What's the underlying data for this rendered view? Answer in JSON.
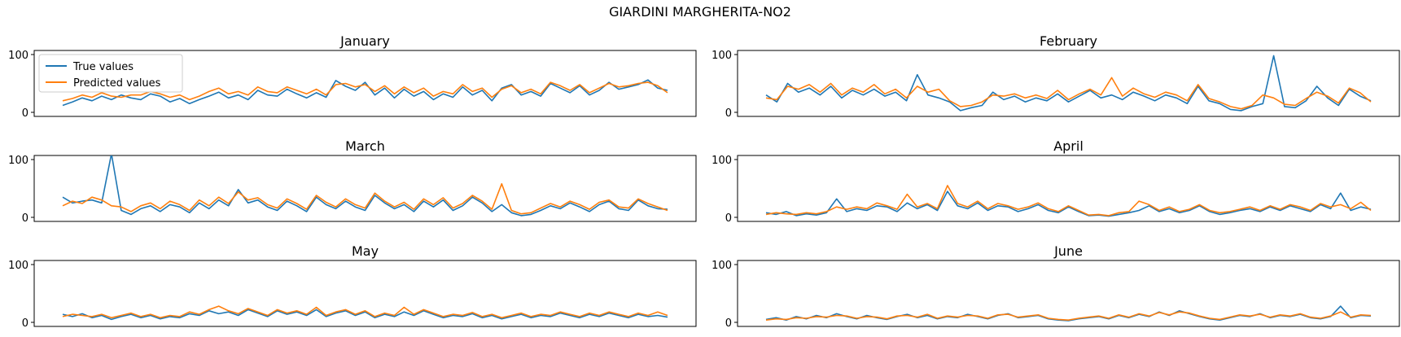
{
  "figure": {
    "title": "GIARDINI MARGHERITA-NO2"
  },
  "legend": {
    "placement": "upper-left",
    "panel_index": 0
  },
  "colors": {
    "true_values": "#1f77b4",
    "predicted_values": "#ff7f0e"
  },
  "chart_data": [
    {
      "type": "line",
      "title": "January",
      "ylim": [
        0,
        100
      ],
      "yticks": [
        0,
        100
      ],
      "x": [
        0,
        12,
        24,
        36,
        48,
        60,
        72,
        84,
        96,
        108,
        120,
        132,
        144,
        156,
        168,
        180,
        192,
        204,
        216,
        228,
        240,
        252,
        264,
        276,
        288,
        300,
        312,
        324,
        336,
        348,
        360,
        372,
        384,
        396,
        408,
        420,
        432,
        444,
        456,
        468,
        480,
        492,
        504,
        516,
        528,
        540,
        552,
        564,
        576,
        588,
        600,
        612,
        624,
        636,
        648,
        660,
        672,
        684,
        696,
        708,
        720,
        732,
        744
      ],
      "series": [
        {
          "name": "True values",
          "values": [
            12,
            18,
            25,
            20,
            28,
            22,
            30,
            25,
            22,
            32,
            28,
            18,
            24,
            15,
            22,
            28,
            35,
            25,
            30,
            22,
            38,
            30,
            28,
            40,
            32,
            25,
            34,
            26,
            55,
            45,
            38,
            52,
            30,
            42,
            25,
            40,
            28,
            36,
            22,
            32,
            26,
            44,
            30,
            38,
            20,
            42,
            48,
            30,
            36,
            28,
            50,
            42,
            34,
            46,
            30,
            38,
            52,
            40,
            44,
            48,
            56,
            42,
            38
          ]
        },
        {
          "name": "Predicted values",
          "values": [
            20,
            24,
            30,
            26,
            34,
            28,
            26,
            30,
            30,
            36,
            32,
            26,
            30,
            22,
            28,
            36,
            42,
            32,
            36,
            30,
            44,
            36,
            34,
            44,
            38,
            32,
            40,
            30,
            48,
            50,
            44,
            48,
            36,
            46,
            32,
            44,
            34,
            42,
            28,
            36,
            32,
            48,
            36,
            42,
            26,
            40,
            46,
            34,
            40,
            32,
            52,
            46,
            38,
            48,
            34,
            42,
            50,
            44,
            46,
            50,
            52,
            46,
            34
          ]
        }
      ]
    },
    {
      "type": "line",
      "title": "February",
      "ylim": [
        0,
        100
      ],
      "yticks": [
        0,
        100
      ],
      "x": [
        0,
        12,
        24,
        36,
        48,
        60,
        72,
        84,
        96,
        108,
        120,
        132,
        144,
        156,
        168,
        180,
        192,
        204,
        216,
        228,
        240,
        252,
        264,
        276,
        288,
        300,
        312,
        324,
        336,
        348,
        360,
        372,
        384,
        396,
        408,
        420,
        432,
        444,
        456,
        468,
        480,
        492,
        504,
        516,
        528,
        540,
        552,
        564,
        576,
        588,
        600,
        612,
        624,
        636,
        648,
        660,
        672
      ],
      "series": [
        {
          "name": "True values",
          "values": [
            30,
            18,
            50,
            35,
            42,
            30,
            45,
            25,
            38,
            30,
            40,
            28,
            35,
            20,
            65,
            30,
            25,
            18,
            3,
            8,
            12,
            35,
            22,
            28,
            18,
            25,
            20,
            32,
            18,
            28,
            38,
            25,
            30,
            22,
            35,
            28,
            20,
            30,
            25,
            15,
            45,
            20,
            15,
            5,
            3,
            10,
            15,
            98,
            10,
            8,
            20,
            45,
            25,
            12,
            40,
            28,
            20
          ]
        },
        {
          "name": "Predicted values",
          "values": [
            25,
            22,
            45,
            40,
            48,
            35,
            50,
            30,
            42,
            35,
            48,
            32,
            40,
            25,
            45,
            35,
            40,
            20,
            10,
            12,
            18,
            30,
            28,
            32,
            25,
            30,
            24,
            38,
            22,
            32,
            40,
            30,
            60,
            28,
            42,
            32,
            26,
            35,
            30,
            20,
            48,
            24,
            18,
            10,
            6,
            12,
            30,
            25,
            14,
            12,
            24,
            35,
            28,
            16,
            42,
            34,
            18
          ]
        }
      ]
    },
    {
      "type": "line",
      "title": "March",
      "ylim": [
        0,
        100
      ],
      "yticks": [
        0,
        100
      ],
      "x": [
        0,
        12,
        24,
        36,
        48,
        60,
        72,
        84,
        96,
        108,
        120,
        132,
        144,
        156,
        168,
        180,
        192,
        204,
        216,
        228,
        240,
        252,
        264,
        276,
        288,
        300,
        312,
        324,
        336,
        348,
        360,
        372,
        384,
        396,
        408,
        420,
        432,
        444,
        456,
        468,
        480,
        492,
        504,
        516,
        528,
        540,
        552,
        564,
        576,
        588,
        600,
        612,
        624,
        636,
        648,
        660,
        672,
        684,
        696,
        708,
        720,
        732,
        744
      ],
      "series": [
        {
          "name": "True values",
          "values": [
            35,
            25,
            28,
            30,
            25,
            110,
            12,
            5,
            15,
            20,
            10,
            22,
            18,
            8,
            25,
            15,
            30,
            20,
            48,
            25,
            30,
            18,
            12,
            28,
            20,
            10,
            35,
            22,
            15,
            28,
            18,
            12,
            38,
            25,
            15,
            22,
            10,
            28,
            18,
            30,
            12,
            20,
            35,
            25,
            10,
            22,
            8,
            3,
            5,
            12,
            20,
            15,
            25,
            18,
            10,
            22,
            28,
            15,
            12,
            30,
            20,
            15,
            14
          ]
        },
        {
          "name": "Predicted values",
          "values": [
            20,
            28,
            24,
            35,
            30,
            20,
            18,
            10,
            20,
            25,
            15,
            28,
            22,
            12,
            30,
            20,
            35,
            24,
            44,
            30,
            34,
            22,
            16,
            32,
            24,
            14,
            38,
            26,
            18,
            32,
            22,
            16,
            42,
            28,
            18,
            26,
            14,
            32,
            22,
            34,
            16,
            24,
            38,
            28,
            14,
            58,
            12,
            6,
            8,
            16,
            24,
            18,
            28,
            22,
            14,
            26,
            30,
            18,
            16,
            32,
            24,
            18,
            12
          ]
        }
      ]
    },
    {
      "type": "line",
      "title": "April",
      "ylim": [
        0,
        100
      ],
      "yticks": [
        0,
        100
      ],
      "x": [
        0,
        12,
        24,
        36,
        48,
        60,
        72,
        84,
        96,
        108,
        120,
        132,
        144,
        156,
        168,
        180,
        192,
        204,
        216,
        228,
        240,
        252,
        264,
        276,
        288,
        300,
        312,
        324,
        336,
        348,
        360,
        372,
        384,
        396,
        408,
        420,
        432,
        444,
        456,
        468,
        480,
        492,
        504,
        516,
        528,
        540,
        552,
        564,
        576,
        588,
        600,
        612,
        624,
        636,
        648,
        660,
        672,
        684,
        696,
        708,
        720
      ],
      "series": [
        {
          "name": "True values",
          "values": [
            8,
            5,
            10,
            3,
            6,
            4,
            8,
            32,
            10,
            15,
            12,
            20,
            18,
            10,
            25,
            15,
            22,
            12,
            45,
            20,
            15,
            25,
            12,
            20,
            18,
            10,
            15,
            22,
            12,
            8,
            18,
            10,
            3,
            4,
            2,
            5,
            8,
            12,
            20,
            10,
            15,
            8,
            12,
            20,
            10,
            5,
            8,
            12,
            15,
            10,
            18,
            12,
            20,
            15,
            10,
            22,
            15,
            42,
            12,
            18,
            14
          ]
        },
        {
          "name": "Predicted values",
          "values": [
            5,
            8,
            6,
            5,
            8,
            6,
            10,
            18,
            14,
            18,
            15,
            25,
            20,
            14,
            40,
            18,
            24,
            15,
            55,
            24,
            18,
            28,
            15,
            24,
            20,
            14,
            18,
            25,
            15,
            10,
            20,
            12,
            4,
            5,
            3,
            8,
            10,
            28,
            22,
            12,
            18,
            10,
            14,
            22,
            12,
            8,
            10,
            14,
            18,
            12,
            20,
            14,
            22,
            18,
            12,
            24,
            18,
            22,
            15,
            26,
            12
          ]
        }
      ]
    },
    {
      "type": "line",
      "title": "May",
      "ylim": [
        0,
        100
      ],
      "yticks": [
        0,
        100
      ],
      "x": [
        0,
        12,
        24,
        36,
        48,
        60,
        72,
        84,
        96,
        108,
        120,
        132,
        144,
        156,
        168,
        180,
        192,
        204,
        216,
        228,
        240,
        252,
        264,
        276,
        288,
        300,
        312,
        324,
        336,
        348,
        360,
        372,
        384,
        396,
        408,
        420,
        432,
        444,
        456,
        468,
        480,
        492,
        504,
        516,
        528,
        540,
        552,
        564,
        576,
        588,
        600,
        612,
        624,
        636,
        648,
        660,
        672,
        684,
        696,
        708,
        720,
        732,
        744
      ],
      "series": [
        {
          "name": "True values",
          "values": [
            14,
            10,
            15,
            8,
            12,
            5,
            10,
            14,
            8,
            12,
            6,
            10,
            8,
            15,
            12,
            20,
            15,
            18,
            12,
            22,
            16,
            10,
            20,
            14,
            18,
            12,
            22,
            10,
            16,
            20,
            12,
            18,
            8,
            14,
            10,
            18,
            12,
            20,
            14,
            8,
            12,
            10,
            15,
            8,
            12,
            6,
            10,
            14,
            8,
            12,
            10,
            16,
            12,
            8,
            14,
            10,
            16,
            12,
            8,
            14,
            10,
            12,
            9
          ]
        },
        {
          "name": "Predicted values",
          "values": [
            10,
            14,
            12,
            10,
            14,
            8,
            12,
            16,
            10,
            14,
            8,
            12,
            10,
            18,
            14,
            22,
            28,
            20,
            15,
            24,
            18,
            12,
            22,
            16,
            20,
            14,
            26,
            12,
            18,
            22,
            14,
            20,
            10,
            16,
            12,
            26,
            14,
            22,
            16,
            10,
            14,
            12,
            17,
            10,
            14,
            8,
            12,
            16,
            10,
            14,
            12,
            18,
            14,
            10,
            16,
            12,
            18,
            14,
            10,
            16,
            12,
            18,
            12
          ]
        }
      ]
    },
    {
      "type": "line",
      "title": "June",
      "ylim": [
        0,
        100
      ],
      "yticks": [
        0,
        100
      ],
      "x": [
        0,
        12,
        24,
        36,
        48,
        60,
        72,
        84,
        96,
        108,
        120,
        132,
        144,
        156,
        168,
        180,
        192,
        204,
        216,
        228,
        240,
        252,
        264,
        276,
        288,
        300,
        312,
        324,
        336,
        348,
        360,
        372,
        384,
        396,
        408,
        420,
        432,
        444,
        456,
        468,
        480,
        492,
        504,
        516,
        528,
        540,
        552,
        564,
        576,
        588,
        600,
        612,
        624,
        636,
        648,
        660,
        672,
        684,
        696,
        708,
        720
      ],
      "series": [
        {
          "name": "True values",
          "values": [
            5,
            8,
            4,
            10,
            6,
            12,
            8,
            15,
            10,
            6,
            12,
            8,
            5,
            10,
            14,
            8,
            12,
            6,
            10,
            8,
            14,
            10,
            6,
            12,
            15,
            8,
            10,
            12,
            6,
            4,
            3,
            6,
            8,
            10,
            6,
            12,
            8,
            14,
            10,
            18,
            12,
            20,
            15,
            10,
            6,
            4,
            8,
            12,
            10,
            15,
            8,
            12,
            10,
            14,
            8,
            6,
            10,
            28,
            8,
            12,
            11
          ]
        },
        {
          "name": "Predicted values",
          "values": [
            4,
            6,
            5,
            8,
            7,
            10,
            9,
            12,
            11,
            7,
            10,
            9,
            6,
            11,
            12,
            9,
            14,
            7,
            11,
            9,
            12,
            11,
            7,
            13,
            14,
            9,
            11,
            13,
            7,
            5,
            4,
            7,
            9,
            11,
            7,
            13,
            9,
            15,
            11,
            17,
            13,
            18,
            16,
            11,
            7,
            5,
            9,
            13,
            11,
            14,
            9,
            13,
            11,
            15,
            9,
            7,
            11,
            18,
            9,
            13,
            12
          ]
        }
      ]
    }
  ]
}
